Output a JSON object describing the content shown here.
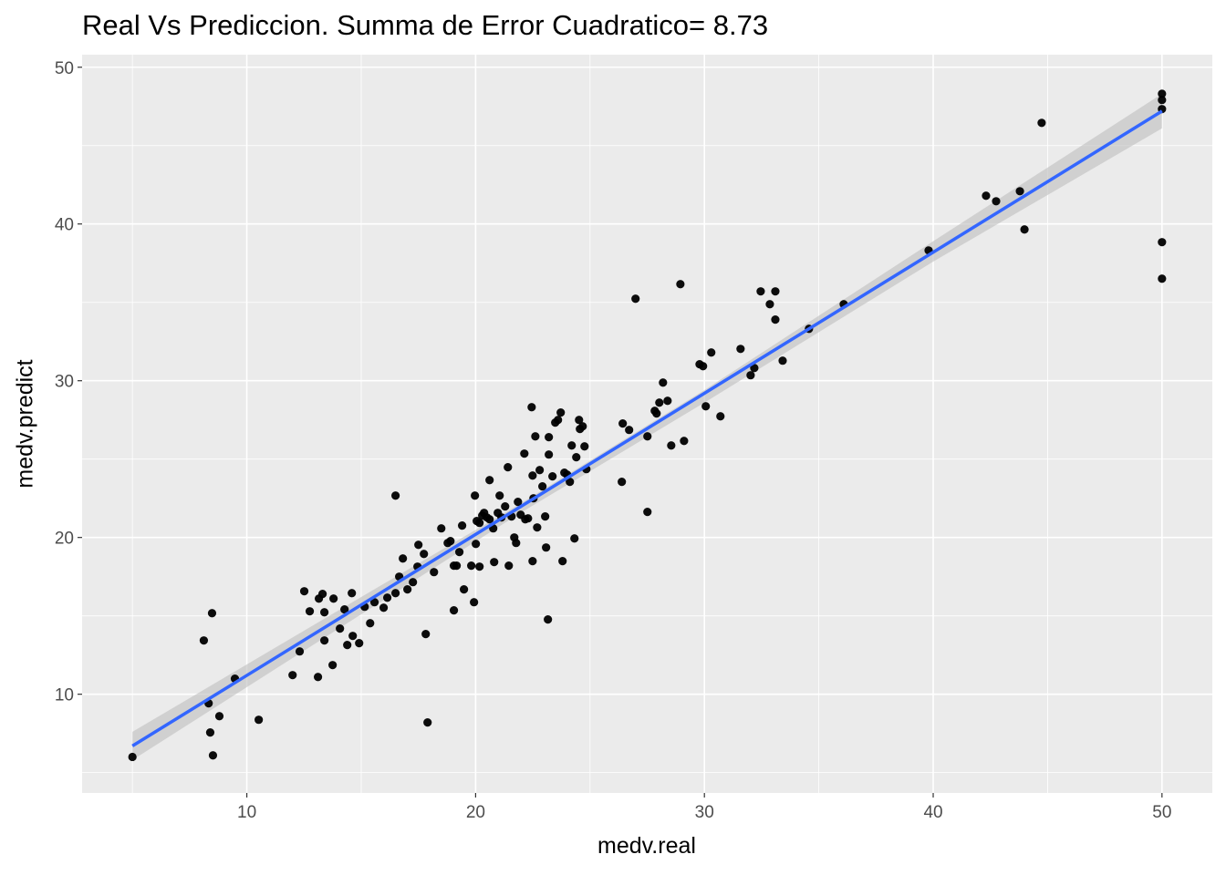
{
  "chart_data": {
    "type": "scatter",
    "title": "Real Vs Prediccion. Summa de Error Cuadratico= 8.73",
    "xlabel": "medv.real",
    "ylabel": "medv.predict",
    "xlim": [
      2.8,
      52.2
    ],
    "ylim": [
      3.7,
      50.8
    ],
    "xticks": [
      10,
      20,
      30,
      40,
      50
    ],
    "yticks": [
      10,
      20,
      30,
      40,
      50
    ],
    "xtick_labels": [
      "10",
      "20",
      "30",
      "40",
      "50"
    ],
    "ytick_labels": [
      "10",
      "20",
      "30",
      "40",
      "50"
    ],
    "grid": true,
    "legend": "none",
    "colors": {
      "panel": "#EBEBEB",
      "grid": "#FFFFFF",
      "points": "#000000",
      "fit_line": "#3366FF",
      "ribbon": "#BEBEBE"
    },
    "fit": {
      "method": "lm",
      "intercept": 2.2,
      "slope": 0.9,
      "x_range": [
        5,
        50
      ]
    },
    "ribbon": [
      [
        5,
        5.8,
        7.6
      ],
      [
        15,
        15.1,
        16.2
      ],
      [
        22,
        21.6,
        22.2
      ],
      [
        30,
        28.6,
        29.4
      ],
      [
        40,
        37.6,
        38.9
      ],
      [
        50,
        46.1,
        48.3
      ]
    ],
    "points": [
      [
        5.0,
        6.0
      ],
      [
        8.33,
        9.42
      ],
      [
        8.4,
        7.56
      ],
      [
        8.52,
        6.1
      ],
      [
        8.12,
        13.43
      ],
      [
        8.48,
        15.17
      ],
      [
        8.8,
        8.6
      ],
      [
        9.48,
        10.99
      ],
      [
        10.52,
        8.37
      ],
      [
        12.0,
        11.22
      ],
      [
        12.31,
        12.73
      ],
      [
        12.51,
        16.57
      ],
      [
        12.75,
        15.29
      ],
      [
        13.11,
        11.1
      ],
      [
        13.15,
        16.1
      ],
      [
        13.31,
        16.4
      ],
      [
        13.39,
        13.43
      ],
      [
        13.39,
        15.23
      ],
      [
        13.75,
        11.86
      ],
      [
        13.79,
        16.1
      ],
      [
        14.07,
        14.19
      ],
      [
        14.27,
        15.41
      ],
      [
        14.39,
        13.14
      ],
      [
        14.59,
        16.45
      ],
      [
        14.63,
        13.72
      ],
      [
        14.91,
        13.26
      ],
      [
        15.15,
        15.58
      ],
      [
        15.39,
        14.53
      ],
      [
        15.58,
        15.87
      ],
      [
        15.98,
        15.52
      ],
      [
        16.14,
        16.16
      ],
      [
        16.5,
        22.67
      ],
      [
        16.5,
        16.45
      ],
      [
        16.66,
        17.5
      ],
      [
        16.82,
        18.66
      ],
      [
        17.02,
        16.69
      ],
      [
        17.26,
        17.15
      ],
      [
        17.5,
        19.53
      ],
      [
        17.46,
        18.14
      ],
      [
        17.74,
        18.95
      ],
      [
        17.82,
        13.84
      ],
      [
        17.9,
        8.2
      ],
      [
        18.18,
        17.79
      ],
      [
        18.5,
        20.58
      ],
      [
        18.78,
        19.65
      ],
      [
        18.9,
        19.77
      ],
      [
        19.05,
        15.35
      ],
      [
        19.05,
        18.2
      ],
      [
        19.17,
        18.2
      ],
      [
        19.29,
        19.07
      ],
      [
        19.41,
        20.76
      ],
      [
        19.49,
        16.69
      ],
      [
        19.81,
        18.2
      ],
      [
        19.93,
        15.87
      ],
      [
        19.97,
        22.67
      ],
      [
        20.01,
        19.59
      ],
      [
        20.05,
        21.05
      ],
      [
        20.17,
        18.14
      ],
      [
        20.17,
        20.93
      ],
      [
        20.29,
        21.4
      ],
      [
        20.37,
        21.57
      ],
      [
        20.49,
        21.28
      ],
      [
        20.61,
        23.66
      ],
      [
        20.61,
        21.16
      ],
      [
        20.77,
        20.58
      ],
      [
        20.81,
        18.43
      ],
      [
        20.97,
        21.57
      ],
      [
        21.05,
        22.67
      ],
      [
        21.13,
        21.28
      ],
      [
        21.29,
        21.98
      ],
      [
        21.41,
        24.48
      ],
      [
        21.45,
        18.2
      ],
      [
        21.57,
        21.34
      ],
      [
        21.69,
        20.0
      ],
      [
        21.77,
        19.65
      ],
      [
        21.85,
        22.27
      ],
      [
        21.97,
        21.45
      ],
      [
        22.13,
        25.35
      ],
      [
        22.17,
        21.16
      ],
      [
        22.29,
        21.22
      ],
      [
        22.45,
        28.31
      ],
      [
        22.49,
        23.95
      ],
      [
        22.49,
        18.49
      ],
      [
        22.53,
        22.5
      ],
      [
        22.61,
        26.45
      ],
      [
        22.69,
        20.64
      ],
      [
        22.8,
        24.3
      ],
      [
        22.92,
        23.26
      ],
      [
        23.04,
        21.34
      ],
      [
        23.08,
        19.36
      ],
      [
        23.16,
        14.77
      ],
      [
        23.2,
        25.29
      ],
      [
        23.2,
        26.4
      ],
      [
        23.36,
        23.9
      ],
      [
        23.48,
        27.33
      ],
      [
        23.6,
        27.5
      ],
      [
        23.72,
        27.97
      ],
      [
        23.8,
        18.49
      ],
      [
        23.88,
        24.13
      ],
      [
        24.0,
        24.01
      ],
      [
        24.12,
        23.55
      ],
      [
        24.2,
        25.87
      ],
      [
        24.32,
        19.94
      ],
      [
        24.4,
        25.12
      ],
      [
        24.52,
        27.5
      ],
      [
        24.56,
        26.92
      ],
      [
        24.68,
        27.09
      ],
      [
        24.76,
        25.81
      ],
      [
        24.84,
        24.36
      ],
      [
        26.43,
        27.27
      ],
      [
        26.39,
        23.55
      ],
      [
        26.71,
        26.86
      ],
      [
        26.99,
        35.23
      ],
      [
        27.51,
        26.45
      ],
      [
        27.51,
        21.63
      ],
      [
        27.83,
        28.08
      ],
      [
        27.91,
        27.91
      ],
      [
        28.03,
        28.6
      ],
      [
        28.19,
        29.88
      ],
      [
        28.39,
        28.72
      ],
      [
        28.55,
        25.87
      ],
      [
        28.95,
        36.16
      ],
      [
        29.11,
        26.16
      ],
      [
        29.79,
        31.05
      ],
      [
        29.94,
        30.93
      ],
      [
        30.06,
        28.37
      ],
      [
        30.3,
        31.8
      ],
      [
        30.7,
        27.73
      ],
      [
        31.58,
        32.03
      ],
      [
        32.02,
        30.35
      ],
      [
        32.18,
        30.81
      ],
      [
        32.46,
        35.7
      ],
      [
        32.86,
        34.88
      ],
      [
        33.1,
        35.7
      ],
      [
        33.1,
        33.9
      ],
      [
        33.42,
        31.28
      ],
      [
        34.57,
        33.31
      ],
      [
        36.09,
        34.88
      ],
      [
        39.8,
        38.31
      ],
      [
        42.31,
        41.8
      ],
      [
        42.75,
        41.45
      ],
      [
        43.79,
        42.09
      ],
      [
        43.99,
        39.65
      ],
      [
        44.74,
        46.45
      ],
      [
        50.0,
        48.31
      ],
      [
        50.0,
        47.91
      ],
      [
        50.0,
        47.33
      ],
      [
        50.0,
        38.84
      ],
      [
        50.0,
        36.51
      ]
    ]
  }
}
